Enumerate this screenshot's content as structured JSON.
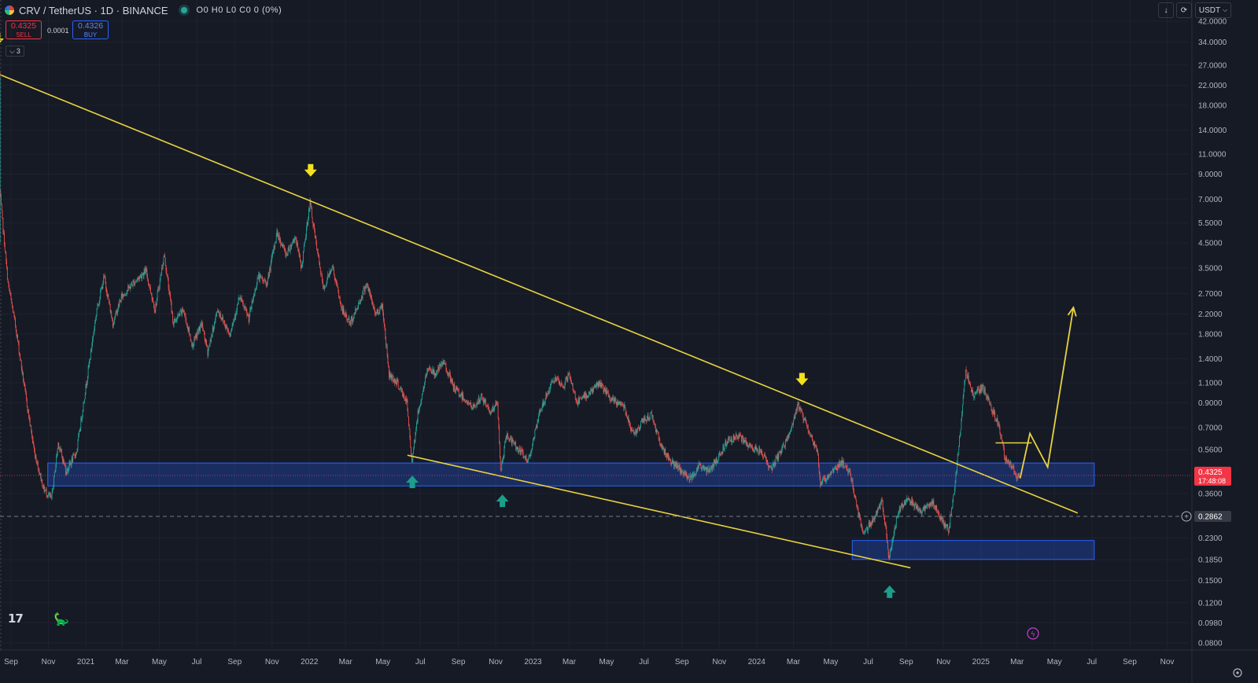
{
  "header": {
    "symbol": "CRV / TetherUS · 1D · BINANCE",
    "ohlc": "O0 H0 L0 C0 0 (0%)",
    "sell_price": "0.4325",
    "sell_label": "SELL",
    "spread": "0.0001",
    "buy_price": "0.4326",
    "buy_label": "BUY",
    "indicators_count": "3",
    "currency": "USDT"
  },
  "colors": {
    "background": "#161a25",
    "up": "#26a69a",
    "down": "#ef5350",
    "trendline": "#e8d33f",
    "zone": "#2962ff",
    "current_price": "#f23645"
  },
  "chart_data": {
    "type": "candlestick",
    "title": "",
    "xlabel": "",
    "ylabel": "",
    "y_scale": "log",
    "x_range": [
      "2020-08-14",
      "2025-12-05"
    ],
    "y_range": [
      0.0745,
      52.0
    ],
    "x_ticks": [
      "Sep",
      "Nov",
      "2021",
      "Mar",
      "May",
      "Jul",
      "Sep",
      "Nov",
      "2022",
      "Mar",
      "May",
      "Jul",
      "Sep",
      "Nov",
      "2023",
      "Mar",
      "May",
      "Jul",
      "Sep",
      "Nov",
      "2024",
      "Mar",
      "May",
      "Jul",
      "Sep",
      "Nov",
      "2025",
      "Mar",
      "May",
      "Jul",
      "Sep",
      "Nov"
    ],
    "x_tick_dates": [
      "2020-09-01",
      "2020-11-01",
      "2021-01-01",
      "2021-03-01",
      "2021-05-01",
      "2021-07-01",
      "2021-09-01",
      "2021-11-01",
      "2022-01-01",
      "2022-03-01",
      "2022-05-01",
      "2022-07-01",
      "2022-09-01",
      "2022-11-01",
      "2023-01-01",
      "2023-03-01",
      "2023-05-01",
      "2023-07-01",
      "2023-09-01",
      "2023-11-01",
      "2024-01-01",
      "2024-03-01",
      "2024-05-01",
      "2024-07-01",
      "2024-09-01",
      "2024-11-01",
      "2025-01-01",
      "2025-03-01",
      "2025-05-01",
      "2025-07-01",
      "2025-09-01",
      "2025-11-01"
    ],
    "y_ticks": [
      42.0,
      34.0,
      27.0,
      22.0,
      18.0,
      14.0,
      11.0,
      9.0,
      7.0,
      5.5,
      4.5,
      3.5,
      2.7,
      2.2,
      1.8,
      1.4,
      1.1,
      0.9,
      0.7,
      0.56,
      0.36,
      0.23,
      0.185,
      0.15,
      0.12,
      0.098,
      0.08
    ],
    "y_tick_labels": [
      "42.0000",
      "34.0000",
      "27.0000",
      "22.0000",
      "18.0000",
      "14.0000",
      "11.0000",
      "9.0000",
      "7.0000",
      "5.5000",
      "4.5000",
      "3.5000",
      "2.7000",
      "2.2000",
      "1.8000",
      "1.4000",
      "1.1000",
      "0.9000",
      "0.7000",
      "0.5600",
      "0.3600",
      "0.2300",
      "0.1850",
      "0.1500",
      "0.1200",
      "0.0980",
      "0.0800"
    ],
    "price_path": [
      [
        "2020-08-14",
        25.0
      ],
      [
        "2020-08-15",
        7.5
      ],
      [
        "2020-08-20",
        5.2
      ],
      [
        "2020-08-28",
        3.0
      ],
      [
        "2020-09-10",
        1.9
      ],
      [
        "2020-09-25",
        1.0
      ],
      [
        "2020-10-10",
        0.55
      ],
      [
        "2020-10-25",
        0.38
      ],
      [
        "2020-11-07",
        0.34
      ],
      [
        "2020-11-18",
        0.6
      ],
      [
        "2020-12-01",
        0.45
      ],
      [
        "2020-12-18",
        0.55
      ],
      [
        "2021-01-05",
        1.2
      ],
      [
        "2021-01-20",
        2.3
      ],
      [
        "2021-02-01",
        3.2
      ],
      [
        "2021-02-15",
        2.0
      ],
      [
        "2021-03-01",
        2.6
      ],
      [
        "2021-03-20",
        3.0
      ],
      [
        "2021-04-10",
        3.4
      ],
      [
        "2021-04-25",
        2.3
      ],
      [
        "2021-05-10",
        4.0
      ],
      [
        "2021-05-25",
        2.0
      ],
      [
        "2021-06-10",
        2.3
      ],
      [
        "2021-06-25",
        1.6
      ],
      [
        "2021-07-10",
        2.0
      ],
      [
        "2021-07-20",
        1.5
      ],
      [
        "2021-08-05",
        2.3
      ],
      [
        "2021-08-25",
        1.8
      ],
      [
        "2021-09-10",
        2.6
      ],
      [
        "2021-09-25",
        2.1
      ],
      [
        "2021-10-10",
        3.2
      ],
      [
        "2021-10-25",
        3.0
      ],
      [
        "2021-11-10",
        5.0
      ],
      [
        "2021-11-25",
        4.0
      ],
      [
        "2021-12-10",
        4.8
      ],
      [
        "2021-12-20",
        3.5
      ],
      [
        "2022-01-03",
        6.8
      ],
      [
        "2022-01-12",
        4.6
      ],
      [
        "2022-01-25",
        2.8
      ],
      [
        "2022-02-08",
        3.6
      ],
      [
        "2022-02-24",
        2.3
      ],
      [
        "2022-03-10",
        2.0
      ],
      [
        "2022-03-25",
        2.5
      ],
      [
        "2022-04-05",
        3.0
      ],
      [
        "2022-04-20",
        2.2
      ],
      [
        "2022-05-01",
        2.4
      ],
      [
        "2022-05-12",
        1.2
      ],
      [
        "2022-05-25",
        1.1
      ],
      [
        "2022-06-10",
        0.9
      ],
      [
        "2022-06-18",
        0.5
      ],
      [
        "2022-06-28",
        0.8
      ],
      [
        "2022-07-15",
        1.3
      ],
      [
        "2022-07-25",
        1.2
      ],
      [
        "2022-08-10",
        1.35
      ],
      [
        "2022-08-25",
        1.05
      ],
      [
        "2022-09-10",
        0.95
      ],
      [
        "2022-09-25",
        0.85
      ],
      [
        "2022-10-10",
        0.95
      ],
      [
        "2022-10-25",
        0.82
      ],
      [
        "2022-11-05",
        0.9
      ],
      [
        "2022-11-10",
        0.45
      ],
      [
        "2022-11-20",
        0.65
      ],
      [
        "2022-12-05",
        0.58
      ],
      [
        "2022-12-25",
        0.5
      ],
      [
        "2023-01-15",
        0.85
      ],
      [
        "2023-02-05",
        1.15
      ],
      [
        "2023-02-20",
        1.05
      ],
      [
        "2023-03-01",
        1.2
      ],
      [
        "2023-03-15",
        0.9
      ],
      [
        "2023-04-05",
        1.0
      ],
      [
        "2023-04-20",
        1.1
      ],
      [
        "2023-05-10",
        0.92
      ],
      [
        "2023-05-30",
        0.88
      ],
      [
        "2023-06-15",
        0.65
      ],
      [
        "2023-07-01",
        0.75
      ],
      [
        "2023-07-15",
        0.8
      ],
      [
        "2023-07-30",
        0.58
      ],
      [
        "2023-08-15",
        0.5
      ],
      [
        "2023-09-01",
        0.45
      ],
      [
        "2023-09-15",
        0.42
      ],
      [
        "2023-10-01",
        0.48
      ],
      [
        "2023-10-15",
        0.45
      ],
      [
        "2023-11-01",
        0.52
      ],
      [
        "2023-11-15",
        0.62
      ],
      [
        "2023-12-05",
        0.64
      ],
      [
        "2023-12-20",
        0.58
      ],
      [
        "2024-01-10",
        0.55
      ],
      [
        "2024-01-25",
        0.46
      ],
      [
        "2024-02-10",
        0.55
      ],
      [
        "2024-02-25",
        0.66
      ],
      [
        "2024-03-10",
        0.88
      ],
      [
        "2024-03-25",
        0.7
      ],
      [
        "2024-04-10",
        0.55
      ],
      [
        "2024-04-15",
        0.4
      ],
      [
        "2024-05-01",
        0.44
      ],
      [
        "2024-05-20",
        0.5
      ],
      [
        "2024-06-05",
        0.42
      ],
      [
        "2024-06-15",
        0.3
      ],
      [
        "2024-06-25",
        0.24
      ],
      [
        "2024-07-10",
        0.28
      ],
      [
        "2024-07-25",
        0.33
      ],
      [
        "2024-08-05",
        0.19
      ],
      [
        "2024-08-20",
        0.3
      ],
      [
        "2024-09-05",
        0.35
      ],
      [
        "2024-09-25",
        0.3
      ],
      [
        "2024-10-15",
        0.33
      ],
      [
        "2024-11-01",
        0.27
      ],
      [
        "2024-11-10",
        0.25
      ],
      [
        "2024-11-20",
        0.38
      ],
      [
        "2024-12-01",
        0.75
      ],
      [
        "2024-12-08",
        1.25
      ],
      [
        "2024-12-20",
        0.98
      ],
      [
        "2025-01-05",
        1.05
      ],
      [
        "2025-01-20",
        0.85
      ],
      [
        "2025-02-01",
        0.7
      ],
      [
        "2025-02-10",
        0.52
      ],
      [
        "2025-02-25",
        0.46
      ],
      [
        "2025-03-03",
        0.42
      ],
      [
        "2025-03-06",
        0.4325
      ]
    ],
    "trendlines": [
      {
        "from": [
          "2020-08-14",
          24.5
        ],
        "to": [
          "2025-06-08",
          0.296
        ]
      },
      {
        "from": [
          "2022-06-10",
          0.53
        ],
        "to": [
          "2024-09-08",
          0.1705
        ]
      }
    ],
    "zones": [
      {
        "x_from": "2020-10-31",
        "x_to": "2025-07-05",
        "y_low": 0.389,
        "y_high": 0.49
      },
      {
        "x_from": "2024-06-05",
        "x_to": "2025-07-05",
        "y_low": 0.1855,
        "y_high": 0.2245
      }
    ],
    "projection": [
      [
        "2025-03-06",
        0.42
      ],
      [
        "2025-03-22",
        0.66
      ],
      [
        "2025-04-20",
        0.47
      ],
      [
        "2025-06-01",
        2.35
      ]
    ],
    "resistance_mark": {
      "from": "2025-01-25",
      "to": "2025-03-25",
      "y": 0.6
    },
    "down_arrows": [
      {
        "date": "2020-08-10",
        "price": 35.0
      },
      {
        "date": "2022-01-03",
        "price": 9.35
      },
      {
        "date": "2024-03-15",
        "price": 1.14
      }
    ],
    "up_arrows": [
      {
        "date": "2022-06-18",
        "price": 0.405
      },
      {
        "date": "2022-11-12",
        "price": 0.335
      },
      {
        "date": "2024-08-05",
        "price": 0.134
      }
    ],
    "current_price": {
      "value": 0.4325,
      "label": "0.4325",
      "countdown": "17:48:08"
    },
    "crosshair": {
      "value": 0.2862,
      "label": "0.2862"
    }
  }
}
